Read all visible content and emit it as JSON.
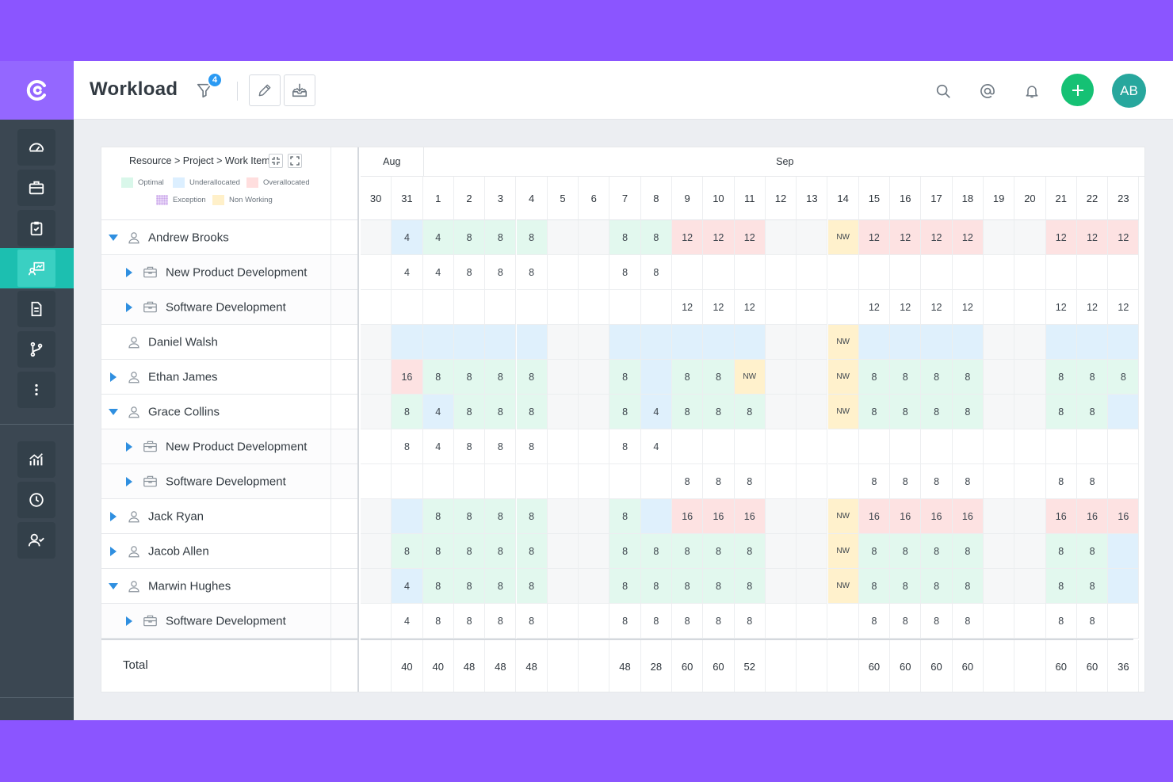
{
  "app": {
    "title": "Workload",
    "filter_count": "4",
    "avatar_initials": "AB"
  },
  "sidebar": {
    "top_items": [
      {
        "name": "dashboard-icon"
      },
      {
        "name": "briefcase-icon"
      },
      {
        "name": "clipboard-icon"
      },
      {
        "name": "workload-icon",
        "active": true
      },
      {
        "name": "document-icon"
      },
      {
        "name": "branch-icon"
      },
      {
        "name": "more-icon"
      }
    ],
    "bottom_items": [
      {
        "name": "analytics-icon"
      },
      {
        "name": "clock-icon"
      },
      {
        "name": "user-check-icon"
      }
    ]
  },
  "panel": {
    "breadcrumb": "Resource > Project > Work Item",
    "legend": [
      {
        "label": "Optimal",
        "color": "#d9f7ea"
      },
      {
        "label": "Underallocated",
        "color": "#dcefff"
      },
      {
        "label": "Overallocated",
        "color": "#ffdede"
      },
      {
        "label": "Exception",
        "color": "#e8d6f7"
      },
      {
        "label": "Non Working",
        "color": "#fff0c9"
      }
    ],
    "months": [
      {
        "label": "Aug",
        "span": 2
      },
      {
        "label": "Sep",
        "span": 23
      }
    ],
    "days": [
      "30",
      "31",
      "1",
      "2",
      "3",
      "4",
      "5",
      "6",
      "7",
      "8",
      "9",
      "10",
      "11",
      "12",
      "13",
      "14",
      "15",
      "16",
      "17",
      "18",
      "19",
      "20",
      "21",
      "22",
      "23"
    ],
    "rows": [
      {
        "label": "Andrew Brooks",
        "type": "resource",
        "expand": "expanded",
        "values": [
          "",
          "4",
          "4",
          "8",
          "8",
          "8",
          "",
          "",
          "8",
          "8",
          "12",
          "12",
          "12",
          "",
          "",
          "NW",
          "12",
          "12",
          "12",
          "12",
          "",
          "",
          "12",
          "12",
          "12"
        ],
        "status": [
          "w",
          "u",
          "o",
          "o",
          "o",
          "o",
          "w",
          "w",
          "o",
          "o",
          "x",
          "x",
          "x",
          "w",
          "w",
          "n",
          "x",
          "x",
          "x",
          "x",
          "w",
          "w",
          "x",
          "x",
          "x"
        ]
      },
      {
        "label": "New Product Development",
        "type": "project",
        "expand": "collapsed",
        "values": [
          "",
          "4",
          "4",
          "8",
          "8",
          "8",
          "",
          "",
          "8",
          "8",
          "",
          "",
          "",
          "",
          "",
          "",
          "",
          "",
          "",
          "",
          "",
          "",
          "",
          "",
          ""
        ]
      },
      {
        "label": "Software Development",
        "type": "project",
        "expand": "collapsed",
        "values": [
          "",
          "",
          "",
          "",
          "",
          "",
          "",
          "",
          "",
          "",
          "12",
          "12",
          "12",
          "",
          "",
          "",
          "12",
          "12",
          "12",
          "12",
          "",
          "",
          "12",
          "12",
          "12"
        ]
      },
      {
        "label": "Daniel Walsh",
        "type": "resource",
        "expand": "none",
        "values": [
          "",
          "",
          "",
          "",
          "",
          "",
          "",
          "",
          "",
          "",
          "",
          "",
          "",
          "",
          "",
          "NW",
          "",
          "",
          "",
          "",
          "",
          "",
          "",
          "",
          ""
        ],
        "status": [
          "w",
          "u",
          "u",
          "u",
          "u",
          "u",
          "w",
          "w",
          "u",
          "u",
          "u",
          "u",
          "u",
          "w",
          "w",
          "n",
          "u",
          "u",
          "u",
          "u",
          "w",
          "w",
          "u",
          "u",
          "u"
        ]
      },
      {
        "label": "Ethan James",
        "type": "resource",
        "expand": "collapsed",
        "values": [
          "",
          "16",
          "8",
          "8",
          "8",
          "8",
          "",
          "",
          "8",
          "",
          "8",
          "8",
          "NW",
          "",
          "",
          "NW",
          "8",
          "8",
          "8",
          "8",
          "",
          "",
          "8",
          "8",
          "8"
        ],
        "status": [
          "w",
          "x",
          "o",
          "o",
          "o",
          "o",
          "w",
          "w",
          "o",
          "u",
          "o",
          "o",
          "n",
          "w",
          "w",
          "n",
          "o",
          "o",
          "o",
          "o",
          "w",
          "w",
          "o",
          "o",
          "o"
        ]
      },
      {
        "label": "Grace Collins",
        "type": "resource",
        "expand": "expanded",
        "values": [
          "",
          "8",
          "4",
          "8",
          "8",
          "8",
          "",
          "",
          "8",
          "4",
          "8",
          "8",
          "8",
          "",
          "",
          "NW",
          "8",
          "8",
          "8",
          "8",
          "",
          "",
          "8",
          "8",
          ""
        ],
        "status": [
          "w",
          "o",
          "u",
          "o",
          "o",
          "o",
          "w",
          "w",
          "o",
          "u",
          "o",
          "o",
          "o",
          "w",
          "w",
          "n",
          "o",
          "o",
          "o",
          "o",
          "w",
          "w",
          "o",
          "o",
          "u"
        ]
      },
      {
        "label": "New Product Development",
        "type": "project",
        "expand": "collapsed",
        "values": [
          "",
          "8",
          "4",
          "8",
          "8",
          "8",
          "",
          "",
          "8",
          "4",
          "",
          "",
          "",
          "",
          "",
          "",
          "",
          "",
          "",
          "",
          "",
          "",
          "",
          "",
          ""
        ]
      },
      {
        "label": "Software Development",
        "type": "project",
        "expand": "collapsed",
        "values": [
          "",
          "",
          "",
          "",
          "",
          "",
          "",
          "",
          "",
          "",
          "8",
          "8",
          "8",
          "",
          "",
          "",
          "8",
          "8",
          "8",
          "8",
          "",
          "",
          "8",
          "8",
          ""
        ]
      },
      {
        "label": "Jack Ryan",
        "type": "resource",
        "expand": "collapsed",
        "values": [
          "",
          "",
          "8",
          "8",
          "8",
          "8",
          "",
          "",
          "8",
          "",
          "16",
          "16",
          "16",
          "",
          "",
          "NW",
          "16",
          "16",
          "16",
          "16",
          "",
          "",
          "16",
          "16",
          "16"
        ],
        "status": [
          "w",
          "u",
          "o",
          "o",
          "o",
          "o",
          "w",
          "w",
          "o",
          "u",
          "x",
          "x",
          "x",
          "w",
          "w",
          "n",
          "x",
          "x",
          "x",
          "x",
          "w",
          "w",
          "x",
          "x",
          "x"
        ]
      },
      {
        "label": "Jacob Allen",
        "type": "resource",
        "expand": "collapsed",
        "values": [
          "",
          "8",
          "8",
          "8",
          "8",
          "8",
          "",
          "",
          "8",
          "8",
          "8",
          "8",
          "8",
          "",
          "",
          "NW",
          "8",
          "8",
          "8",
          "8",
          "",
          "",
          "8",
          "8",
          ""
        ],
        "status": [
          "w",
          "o",
          "o",
          "o",
          "o",
          "o",
          "w",
          "w",
          "o",
          "o",
          "o",
          "o",
          "o",
          "w",
          "w",
          "n",
          "o",
          "o",
          "o",
          "o",
          "w",
          "w",
          "o",
          "o",
          "u"
        ]
      },
      {
        "label": "Marwin Hughes",
        "type": "resource",
        "expand": "expanded",
        "values": [
          "",
          "4",
          "8",
          "8",
          "8",
          "8",
          "",
          "",
          "8",
          "8",
          "8",
          "8",
          "8",
          "",
          "",
          "NW",
          "8",
          "8",
          "8",
          "8",
          "",
          "",
          "8",
          "8",
          ""
        ],
        "status": [
          "w",
          "u",
          "o",
          "o",
          "o",
          "o",
          "w",
          "w",
          "o",
          "o",
          "o",
          "o",
          "o",
          "w",
          "w",
          "n",
          "o",
          "o",
          "o",
          "o",
          "w",
          "w",
          "o",
          "o",
          "u"
        ]
      },
      {
        "label": "Software Development",
        "type": "project",
        "expand": "collapsed",
        "values": [
          "",
          "4",
          "8",
          "8",
          "8",
          "8",
          "",
          "",
          "8",
          "8",
          "8",
          "8",
          "8",
          "",
          "",
          "",
          "8",
          "8",
          "8",
          "8",
          "",
          "",
          "8",
          "8",
          ""
        ]
      }
    ],
    "total_label": "Total",
    "totals": [
      "",
      "40",
      "40",
      "48",
      "48",
      "48",
      "",
      "",
      "48",
      "28",
      "60",
      "60",
      "52",
      "",
      "",
      "",
      "60",
      "60",
      "60",
      "60",
      "",
      "",
      "60",
      "60",
      "36"
    ]
  },
  "status_colors": {
    "o": "#e2f8ee",
    "u": "#dff0fc",
    "x": "#fde2e2",
    "n": "#fff1cc",
    "w": "#f6f7f8"
  }
}
